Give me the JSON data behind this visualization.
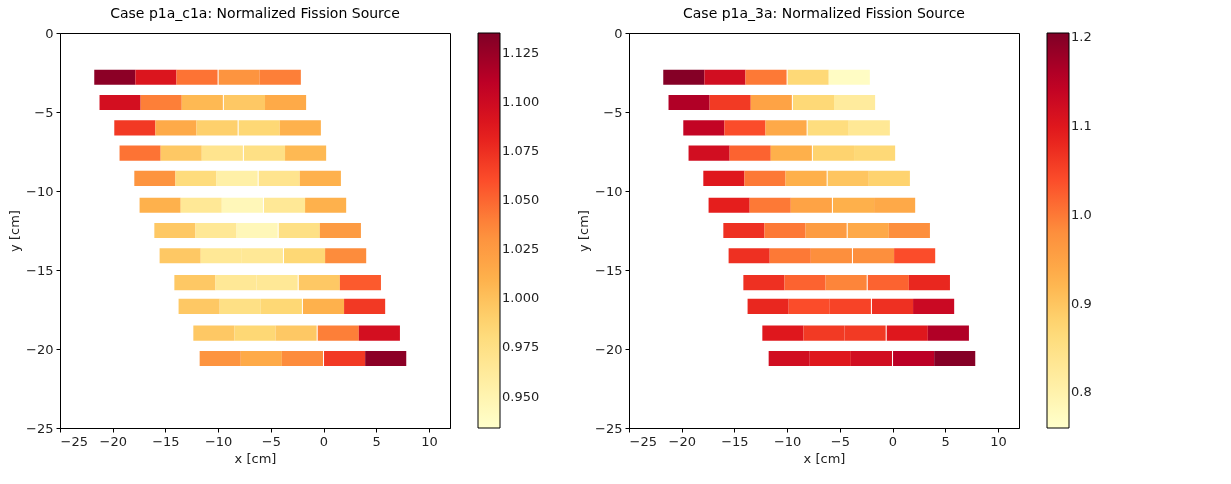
{
  "chart_data": [
    {
      "type": "scatter",
      "title": "Case p1a_c1a: Normalized Fission Source",
      "xlabel": "x [cm]",
      "ylabel": "y [cm]",
      "marker": "square",
      "grid": false,
      "xlim": [
        -25,
        12
      ],
      "ylim": [
        -25,
        0
      ],
      "xticks": [
        -25,
        -20,
        -15,
        -10,
        -5,
        0,
        5,
        10
      ],
      "yticks": [
        -25,
        -20,
        -15,
        -10,
        -5,
        0
      ],
      "clim": [
        0.934,
        1.135
      ],
      "cticks": [
        {
          "value": 0.95,
          "label": "0.950"
        },
        {
          "value": 0.975,
          "label": "0.975"
        },
        {
          "value": 1,
          "label": "1.000"
        },
        {
          "value": 1.025,
          "label": "1.025"
        },
        {
          "value": 1.05,
          "label": "1.050"
        },
        {
          "value": 1.075,
          "label": "1.075"
        },
        {
          "value": 1.1,
          "label": "1.100"
        },
        {
          "value": 1.125,
          "label": "1.125"
        }
      ],
      "x": [
        -19.8,
        -15.9,
        -12.0,
        -8.0,
        -4.1,
        -19.3,
        -15.4,
        -11.5,
        -7.5,
        -3.6,
        -17.9,
        -14.0,
        -10.1,
        -6.1,
        -2.2,
        -17.4,
        -13.5,
        -9.6,
        -5.6,
        -1.7,
        -16.0,
        -12.1,
        -8.2,
        -4.2,
        -0.3,
        -15.5,
        -11.6,
        -7.7,
        -3.7,
        0.2,
        -14.1,
        -10.2,
        -6.3,
        -2.3,
        1.6,
        -13.6,
        -9.7,
        -5.8,
        -1.8,
        2.1,
        -12.2,
        -8.3,
        -4.4,
        -0.4,
        3.5,
        -11.8,
        -7.9,
        -4.0,
        0.0,
        3.9,
        -10.4,
        -6.5,
        -2.6,
        1.4,
        5.3,
        -9.8,
        -5.9,
        -2.0,
        2.0,
        5.9
      ],
      "values": [
        -2.8,
        -2.8,
        -2.8,
        -2.8,
        -2.8,
        -4.4,
        -4.4,
        -4.4,
        -4.4,
        -4.4,
        -6.0,
        -6.0,
        -6.0,
        -6.0,
        -6.0,
        -7.6,
        -7.6,
        -7.6,
        -7.6,
        -7.6,
        -9.2,
        -9.2,
        -9.2,
        -9.2,
        -9.2,
        -10.9,
        -10.9,
        -10.9,
        -10.9,
        -10.9,
        -12.5,
        -12.5,
        -12.5,
        -12.5,
        -12.5,
        -14.1,
        -14.1,
        -14.1,
        -14.1,
        -14.1,
        -15.8,
        -15.8,
        -15.8,
        -15.8,
        -15.8,
        -17.3,
        -17.3,
        -17.3,
        -17.3,
        -17.3,
        -19.0,
        -19.0,
        -19.0,
        -19.0,
        -19.0,
        -20.6,
        -20.6,
        -20.6,
        -20.6,
        -20.6
      ],
      "cvalues": [
        1.13,
        1.09,
        1.045,
        1.03,
        1.04,
        1.095,
        1.04,
        1.005,
        0.995,
        1.015,
        1.07,
        1.015,
        0.99,
        0.985,
        1.01,
        1.045,
        0.995,
        0.97,
        0.975,
        1.005,
        1.03,
        0.98,
        0.955,
        0.97,
        1.01,
        1.01,
        0.965,
        0.945,
        0.965,
        1.01,
        0.995,
        0.965,
        0.945,
        0.975,
        1.025,
        0.995,
        0.965,
        0.965,
        0.985,
        1.035,
        0.995,
        0.965,
        0.965,
        0.995,
        1.055,
        0.995,
        0.975,
        0.985,
        1.01,
        1.07,
        0.995,
        0.985,
        0.995,
        1.04,
        1.095,
        1.03,
        1.015,
        1.035,
        1.07,
        1.13
      ]
    },
    {
      "type": "scatter",
      "title": "Case p1a_3a: Normalized Fission Source",
      "xlabel": "x [cm]",
      "ylabel": "y [cm]",
      "marker": "square",
      "grid": false,
      "xlim": [
        -25,
        12
      ],
      "ylim": [
        -25,
        0
      ],
      "xticks": [
        -25,
        -20,
        -15,
        -10,
        -5,
        0,
        5,
        10
      ],
      "yticks": [
        -25,
        -20,
        -15,
        -10,
        -5,
        0
      ],
      "clim": [
        0.76,
        1.205
      ],
      "cticks": [
        0.8,
        0.9,
        {
          "value": 1,
          "label": "1.0"
        },
        1.1,
        1.2
      ],
      "x": [
        -19.8,
        -15.9,
        -12.0,
        -8.0,
        -4.1,
        -19.3,
        -15.4,
        -11.5,
        -7.5,
        -3.6,
        -17.9,
        -14.0,
        -10.1,
        -6.1,
        -2.2,
        -17.4,
        -13.5,
        -9.6,
        -5.6,
        -1.7,
        -16.0,
        -12.1,
        -8.2,
        -4.2,
        -0.3,
        -15.5,
        -11.6,
        -7.7,
        -3.7,
        0.2,
        -14.1,
        -10.2,
        -6.3,
        -2.3,
        1.6,
        -13.6,
        -9.7,
        -5.8,
        -1.8,
        2.1,
        -12.2,
        -8.3,
        -4.4,
        -0.4,
        3.5,
        -11.8,
        -7.9,
        -4.0,
        0.0,
        3.9,
        -10.4,
        -6.5,
        -2.6,
        1.4,
        5.3,
        -9.8,
        -5.9,
        -2.0,
        2.0,
        5.9
      ],
      "values": [
        -2.8,
        -2.8,
        -2.8,
        -2.8,
        -2.8,
        -4.4,
        -4.4,
        -4.4,
        -4.4,
        -4.4,
        -6.0,
        -6.0,
        -6.0,
        -6.0,
        -6.0,
        -7.6,
        -7.6,
        -7.6,
        -7.6,
        -7.6,
        -9.2,
        -9.2,
        -9.2,
        -9.2,
        -9.2,
        -10.9,
        -10.9,
        -10.9,
        -10.9,
        -10.9,
        -12.5,
        -12.5,
        -12.5,
        -12.5,
        -12.5,
        -14.1,
        -14.1,
        -14.1,
        -14.1,
        -14.1,
        -15.8,
        -15.8,
        -15.8,
        -15.8,
        -15.8,
        -17.3,
        -17.3,
        -17.3,
        -17.3,
        -17.3,
        -19.0,
        -19.0,
        -19.0,
        -19.0,
        -19.0,
        -20.6,
        -20.6,
        -20.6,
        -20.6,
        -20.6
      ],
      "cvalues": [
        1.2,
        1.12,
        1.0,
        0.87,
        0.77,
        1.16,
        1.06,
        0.95,
        0.87,
        0.82,
        1.14,
        1.04,
        0.94,
        0.86,
        0.83,
        1.12,
        1.02,
        0.93,
        0.88,
        0.87,
        1.1,
        1.0,
        0.93,
        0.9,
        0.88,
        1.09,
        1.0,
        0.95,
        0.93,
        0.94,
        1.07,
        1.0,
        0.96,
        0.94,
        0.98,
        1.07,
        1.0,
        0.98,
        0.98,
        1.04,
        1.07,
        1.02,
        0.99,
        1.02,
        1.08,
        1.08,
        1.04,
        1.05,
        1.07,
        1.13,
        1.1,
        1.06,
        1.06,
        1.1,
        1.16,
        1.12,
        1.1,
        1.12,
        1.15,
        1.2
      ]
    }
  ]
}
